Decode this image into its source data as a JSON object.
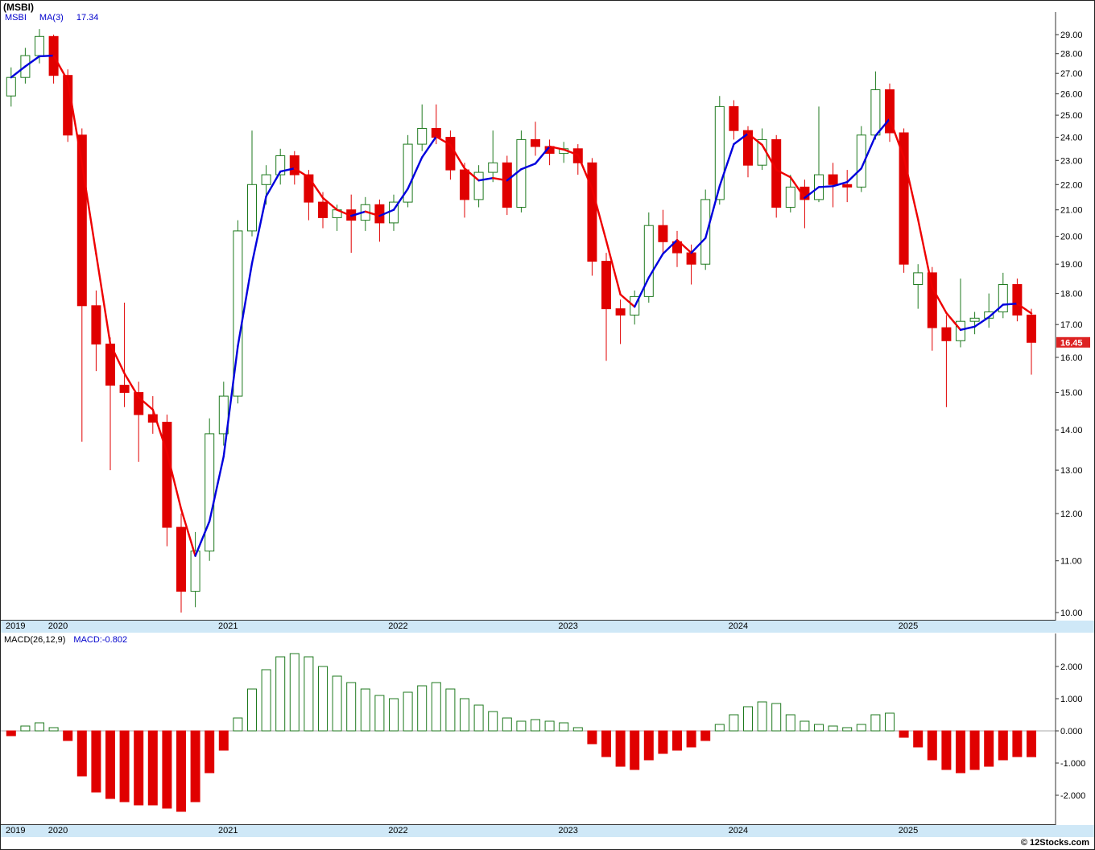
{
  "header": {
    "title": "(MSBI)",
    "legend": {
      "symbol": "MSBI",
      "ma_label": "MA(3)",
      "ma_value": "17.34"
    }
  },
  "macd_panel": {
    "label": "MACD(26,12,9)",
    "value": "MACD:-0.802"
  },
  "footer": {
    "copyright": "© 12Stocks.com"
  },
  "colors": {
    "up": "#1f7a1f",
    "down": "#e00000",
    "ma_up": "#0000dd",
    "ma_down": "#ee0000",
    "band": "#cfe8f7",
    "legend_text": "#0000cc",
    "title_text": "#000000",
    "frame": "#333333",
    "zero_line": "#aaaaaa",
    "tag_bg": "#dd2222",
    "tag_text": "#ffffff"
  },
  "chart_data": {
    "type": "candlestick",
    "symbol": "MSBI",
    "interval": "monthly",
    "overlay": {
      "name": "MA(3)",
      "last": 17.34
    },
    "indicator": {
      "name": "MACD(26,12,9)",
      "last": -0.802
    },
    "last_price": 16.45,
    "last_price_label": "16.45",
    "price_axis": {
      "scale": "log",
      "min": 10,
      "max": 29,
      "tick_values": [
        29,
        28,
        27,
        26,
        25,
        24,
        23,
        22,
        21,
        20,
        19,
        18,
        17,
        16,
        15,
        14,
        13,
        12,
        11,
        10
      ],
      "tick_labels": [
        "29.00",
        "28.00",
        "27.00",
        "26.00",
        "25.00",
        "24.00",
        "23.00",
        "22.00",
        "21.00",
        "20.00",
        "19.00",
        "18.00",
        "17.00",
        "16.00",
        "15.00",
        "14.00",
        "13.00",
        "12.00",
        "11.00",
        "10.00"
      ]
    },
    "macd_axis": {
      "tick_values": [
        2,
        1,
        0,
        -1,
        -2
      ],
      "tick_labels": [
        "2.000",
        "1.000",
        "0.000",
        "-1.000",
        "-2.000"
      ]
    },
    "years": [
      {
        "label": "2019",
        "start_index": 0
      },
      {
        "label": "2020",
        "start_index": 3
      },
      {
        "label": "2021",
        "start_index": 15
      },
      {
        "label": "2022",
        "start_index": 27
      },
      {
        "label": "2023",
        "start_index": 39
      },
      {
        "label": "2024",
        "start_index": 51
      },
      {
        "label": "2025",
        "start_index": 63
      }
    ],
    "columns": [
      "month",
      "open",
      "high",
      "low",
      "close",
      "macd_hist"
    ],
    "months": [
      [
        "2019-10",
        25.9,
        27.3,
        25.4,
        26.8,
        -0.15
      ],
      [
        "2019-11",
        26.8,
        28.3,
        26.5,
        27.9,
        0.15
      ],
      [
        "2019-12",
        27.9,
        29.3,
        27.5,
        28.9,
        0.25
      ],
      [
        "2020-01",
        28.9,
        29.0,
        26.5,
        26.9,
        0.1
      ],
      [
        "2020-02",
        26.9,
        27.2,
        23.8,
        24.1,
        -0.3
      ],
      [
        "2020-03",
        24.1,
        24.4,
        13.7,
        17.6,
        -1.4
      ],
      [
        "2020-04",
        17.6,
        18.1,
        15.6,
        16.4,
        -1.9
      ],
      [
        "2020-05",
        16.4,
        16.6,
        13.0,
        15.2,
        -2.1
      ],
      [
        "2020-06",
        15.2,
        17.7,
        14.6,
        15.0,
        -2.2
      ],
      [
        "2020-07",
        15.0,
        15.3,
        13.2,
        14.4,
        -2.3
      ],
      [
        "2020-08",
        14.4,
        14.9,
        13.9,
        14.2,
        -2.3
      ],
      [
        "2020-09",
        14.2,
        14.4,
        11.3,
        11.7,
        -2.4
      ],
      [
        "2020-10",
        11.7,
        12.0,
        10.0,
        10.4,
        -2.5
      ],
      [
        "2020-11",
        10.4,
        11.6,
        10.1,
        11.2,
        -2.2
      ],
      [
        "2020-12",
        11.2,
        14.3,
        11.0,
        13.9,
        -1.3
      ],
      [
        "2021-01",
        13.9,
        15.3,
        13.6,
        14.9,
        -0.6
      ],
      [
        "2021-02",
        14.9,
        20.6,
        14.7,
        20.2,
        0.4
      ],
      [
        "2021-03",
        20.2,
        24.3,
        20.0,
        22.0,
        1.3
      ],
      [
        "2021-04",
        22.0,
        22.8,
        21.2,
        22.4,
        1.9
      ],
      [
        "2021-05",
        22.4,
        23.5,
        22.0,
        23.2,
        2.3
      ],
      [
        "2021-06",
        23.2,
        23.4,
        22.0,
        22.4,
        2.4
      ],
      [
        "2021-07",
        22.4,
        22.6,
        20.6,
        21.3,
        2.3
      ],
      [
        "2021-08",
        21.3,
        21.7,
        20.3,
        20.7,
        2.0
      ],
      [
        "2021-09",
        20.7,
        21.2,
        20.2,
        21.0,
        1.7
      ],
      [
        "2021-10",
        21.0,
        21.6,
        19.4,
        20.6,
        1.5
      ],
      [
        "2021-11",
        20.6,
        21.5,
        20.2,
        21.2,
        1.3
      ],
      [
        "2021-12",
        21.2,
        21.4,
        19.8,
        20.5,
        1.1
      ],
      [
        "2022-01",
        20.5,
        21.6,
        20.2,
        21.3,
        1.0
      ],
      [
        "2022-02",
        21.3,
        24.1,
        21.1,
        23.7,
        1.2
      ],
      [
        "2022-03",
        23.7,
        25.5,
        23.4,
        24.4,
        1.4
      ],
      [
        "2022-04",
        24.4,
        25.5,
        23.7,
        24.0,
        1.5
      ],
      [
        "2022-05",
        24.0,
        24.3,
        22.2,
        22.6,
        1.3
      ],
      [
        "2022-06",
        22.6,
        22.9,
        20.7,
        21.4,
        1.0
      ],
      [
        "2022-07",
        21.4,
        22.8,
        21.1,
        22.5,
        0.8
      ],
      [
        "2022-08",
        22.5,
        24.3,
        22.1,
        22.9,
        0.6
      ],
      [
        "2022-09",
        22.9,
        23.2,
        20.8,
        21.1,
        0.4
      ],
      [
        "2022-10",
        21.1,
        24.3,
        20.9,
        23.9,
        0.3
      ],
      [
        "2022-11",
        23.9,
        24.7,
        23.2,
        23.6,
        0.35
      ],
      [
        "2022-12",
        23.6,
        23.9,
        22.8,
        23.3,
        0.3
      ],
      [
        "2023-01",
        23.3,
        23.8,
        22.9,
        23.5,
        0.25
      ],
      [
        "2023-02",
        23.5,
        23.7,
        22.4,
        22.9,
        0.1
      ],
      [
        "2023-03",
        22.9,
        23.1,
        18.6,
        19.1,
        -0.4
      ],
      [
        "2023-04",
        19.1,
        19.4,
        15.9,
        17.5,
        -0.8
      ],
      [
        "2023-05",
        17.5,
        17.8,
        16.4,
        17.3,
        -1.1
      ],
      [
        "2023-06",
        17.3,
        18.1,
        17.0,
        17.9,
        -1.2
      ],
      [
        "2023-07",
        17.9,
        20.9,
        17.7,
        20.4,
        -0.9
      ],
      [
        "2023-08",
        20.4,
        21.0,
        19.4,
        19.8,
        -0.7
      ],
      [
        "2023-09",
        19.8,
        20.2,
        18.9,
        19.4,
        -0.6
      ],
      [
        "2023-10",
        19.4,
        19.7,
        18.3,
        19.0,
        -0.5
      ],
      [
        "2023-11",
        19.0,
        21.8,
        18.8,
        21.4,
        -0.3
      ],
      [
        "2023-12",
        21.4,
        25.9,
        21.2,
        25.4,
        0.2
      ],
      [
        "2024-01",
        25.4,
        25.7,
        23.9,
        24.3,
        0.5
      ],
      [
        "2024-02",
        24.3,
        24.5,
        22.3,
        22.8,
        0.75
      ],
      [
        "2024-03",
        22.8,
        24.4,
        22.6,
        23.9,
        0.9
      ],
      [
        "2024-04",
        23.9,
        24.1,
        20.7,
        21.1,
        0.85
      ],
      [
        "2024-05",
        21.1,
        22.4,
        20.9,
        21.9,
        0.5
      ],
      [
        "2024-06",
        21.9,
        22.2,
        20.3,
        21.4,
        0.3
      ],
      [
        "2024-07",
        21.4,
        25.4,
        21.3,
        22.4,
        0.2
      ],
      [
        "2024-08",
        22.4,
        22.9,
        21.1,
        22.0,
        0.15
      ],
      [
        "2024-09",
        22.0,
        22.6,
        21.3,
        21.9,
        0.1
      ],
      [
        "2024-10",
        21.9,
        24.5,
        21.7,
        24.1,
        0.2
      ],
      [
        "2024-11",
        24.1,
        27.1,
        23.9,
        26.2,
        0.5
      ],
      [
        "2024-12",
        26.2,
        26.5,
        23.8,
        24.2,
        0.55
      ],
      [
        "2025-01",
        24.2,
        24.4,
        18.7,
        19.0,
        -0.2
      ],
      [
        "2025-02",
        18.3,
        19.0,
        17.5,
        18.7,
        -0.5
      ],
      [
        "2025-03",
        18.7,
        18.9,
        16.2,
        16.9,
        -0.9
      ],
      [
        "2025-04",
        16.9,
        17.3,
        14.6,
        16.5,
        -1.2
      ],
      [
        "2025-05",
        16.5,
        18.5,
        16.3,
        17.1,
        -1.3
      ],
      [
        "2025-06",
        17.1,
        17.4,
        16.7,
        17.2,
        -1.2
      ],
      [
        "2025-07",
        17.2,
        18.0,
        16.9,
        17.4,
        -1.1
      ],
      [
        "2025-08",
        17.4,
        18.7,
        17.2,
        18.3,
        -0.9
      ],
      [
        "2025-09",
        18.3,
        18.5,
        17.1,
        17.3,
        -0.8
      ],
      [
        "2025-10",
        17.3,
        17.5,
        15.5,
        16.45,
        -0.802
      ]
    ]
  }
}
